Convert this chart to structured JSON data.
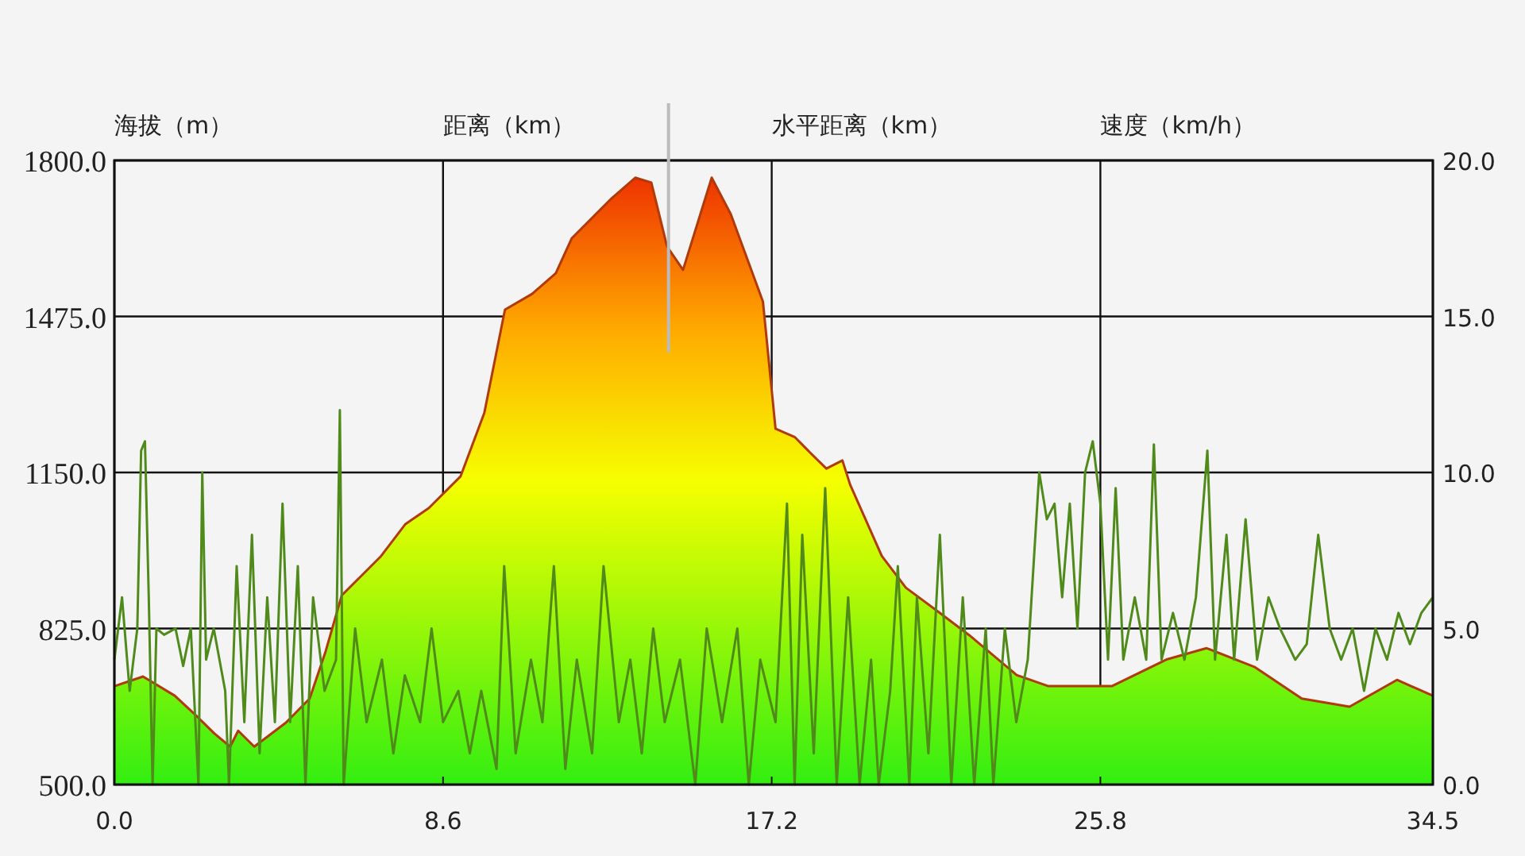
{
  "chart_data": {
    "type": "area",
    "xlabel": "距离（km）",
    "ylabel": "海拔（m）",
    "y2label": "速度（km/h）",
    "annotations": [
      "水平距离（km）"
    ],
    "xlim": [
      0,
      34.5
    ],
    "xticks": [
      {
        "value": 0,
        "label": "0.0"
      },
      {
        "value": 8.6,
        "label": "8.6"
      },
      {
        "value": 17.2,
        "label": "17.2"
      },
      {
        "value": 25.8,
        "label": "25.8"
      },
      {
        "value": 34.5,
        "label": "34.5"
      }
    ],
    "ylim": [
      500,
      1800
    ],
    "yticks": [
      {
        "value": 500,
        "label": "500.0"
      },
      {
        "value": 825,
        "label": "825.0"
      },
      {
        "value": 1150,
        "label": "1150.0"
      },
      {
        "value": 1475,
        "label": "1475.0"
      },
      {
        "value": 1800,
        "label": "1800.0"
      }
    ],
    "y2lim": [
      0,
      20
    ],
    "y2ticks": [
      {
        "value": 0,
        "label": "0.0"
      },
      {
        "value": 5,
        "label": "5.0"
      },
      {
        "value": 10,
        "label": "10.0"
      },
      {
        "value": 15,
        "label": "15.0"
      },
      {
        "value": 20,
        "label": "20.0"
      }
    ],
    "grid": true,
    "ref_lines": [
      {
        "axis": "x",
        "value": 14.5,
        "color": "#bbbbbb"
      }
    ],
    "series": [
      {
        "color": "#b03a0a",
        "x": [
          0,
          0.75,
          1.58,
          2.2,
          2.62,
          3.03,
          3.24,
          3.66,
          4.49,
          5.11,
          5.53,
          5.95,
          6.98,
          7.61,
          8.23,
          9.06,
          9.68,
          10.22,
          10.93,
          11.55,
          11.97,
          13.01,
          13.63,
          14.05,
          14.46,
          14.88,
          15.63,
          16.13,
          16.97,
          17.3,
          17.8,
          18.21,
          18.63,
          19.05,
          19.25,
          20.08,
          20.71,
          21.54,
          22.37,
          23.61,
          24.44,
          26.1,
          27.55,
          28.58,
          29.83,
          31.07,
          32.32,
          33.56,
          34.5
        ],
        "values": [
          705,
          725,
          685,
          639,
          606,
          579,
          612,
          579,
          629,
          679,
          778,
          894,
          976,
          1042,
          1076,
          1142,
          1274,
          1489,
          1522,
          1565,
          1638,
          1721,
          1764,
          1754,
          1621,
          1572,
          1764,
          1688,
          1506,
          1241,
          1224,
          1191,
          1158,
          1175,
          1125,
          976,
          910,
          861,
          811,
          728,
          705,
          705,
          761,
          784,
          745,
          679,
          662,
          718,
          685
        ]
      },
      {
        "type": "line",
        "axis": "y2",
        "color": "#4f8a1a",
        "x": [
          0,
          0.2,
          0.4,
          0.6,
          0.7,
          0.8,
          0.9,
          1.0,
          1.1,
          1.3,
          1.6,
          1.8,
          2.0,
          2.2,
          2.3,
          2.4,
          2.6,
          2.9,
          3.0,
          3.2,
          3.4,
          3.6,
          3.8,
          4.0,
          4.2,
          4.4,
          4.6,
          4.8,
          5.0,
          5.2,
          5.5,
          5.8,
          5.9,
          6.0,
          6.3,
          6.6,
          7.0,
          7.3,
          7.6,
          8.0,
          8.3,
          8.6,
          9.0,
          9.3,
          9.6,
          10.0,
          10.2,
          10.5,
          10.9,
          11.2,
          11.5,
          11.8,
          12.1,
          12.5,
          12.8,
          13.2,
          13.5,
          13.8,
          14.1,
          14.4,
          14.8,
          15.2,
          15.5,
          15.9,
          16.3,
          16.6,
          16.9,
          17.3,
          17.6,
          17.8,
          18.0,
          18.3,
          18.6,
          18.9,
          19.2,
          19.5,
          19.8,
          20.0,
          20.3,
          20.5,
          20.8,
          21.0,
          21.3,
          21.6,
          21.9,
          22.2,
          22.5,
          22.8,
          23.0,
          23.3,
          23.6,
          23.9,
          24.2,
          24.4,
          24.6,
          24.8,
          25.0,
          25.2,
          25.4,
          25.6,
          25.8,
          26.0,
          26.2,
          26.4,
          26.7,
          27.0,
          27.2,
          27.4,
          27.7,
          28.0,
          28.3,
          28.6,
          28.8,
          29.1,
          29.3,
          29.6,
          29.9,
          30.2,
          30.5,
          30.9,
          31.2,
          31.5,
          31.8,
          32.1,
          32.4,
          32.7,
          33.0,
          33.3,
          33.6,
          33.9,
          34.2,
          34.5
        ],
        "values": [
          4,
          6,
          3,
          5,
          10.7,
          11,
          6,
          0,
          5,
          4.8,
          5,
          3.8,
          5,
          0,
          10,
          4,
          5,
          3,
          0,
          7,
          2,
          8,
          1,
          6,
          2,
          9,
          2,
          7,
          0,
          6,
          3,
          4,
          12,
          0,
          5,
          2,
          4,
          1,
          3.5,
          2,
          5,
          2,
          3,
          1,
          3,
          0.5,
          7,
          1,
          4,
          2,
          7,
          0.5,
          4,
          1,
          7,
          2,
          4,
          1,
          5,
          2,
          4,
          0,
          5,
          2,
          5,
          0,
          4,
          2,
          9,
          0,
          8,
          1,
          9.5,
          0,
          6,
          0,
          4,
          0,
          3,
          7,
          0,
          6,
          1,
          8,
          0,
          6,
          0,
          5,
          0,
          5,
          2,
          4,
          10,
          8.5,
          9,
          6,
          9,
          5,
          10,
          11,
          9,
          4,
          9.5,
          4,
          6,
          4,
          10.9,
          4,
          5.5,
          4,
          6,
          10.7,
          4,
          8,
          4,
          8.5,
          4,
          6,
          5,
          4,
          4.5,
          8,
          5,
          4,
          5,
          3,
          5,
          4,
          5.5,
          4.5,
          5.5,
          6
        ]
      }
    ]
  }
}
